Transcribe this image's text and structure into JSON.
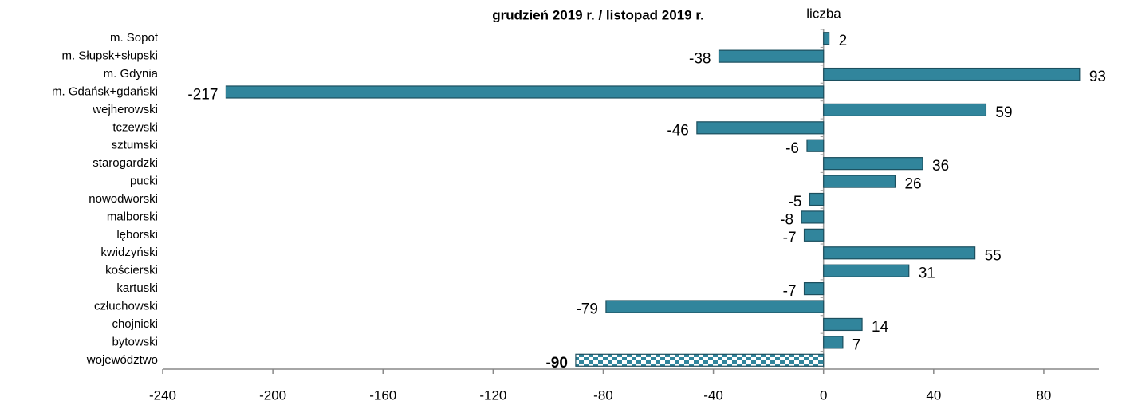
{
  "chart_data": {
    "type": "hbar",
    "title": "grudzień 2019 r. / listopad 2019 r.",
    "axis_label": "liczba",
    "categories": [
      "m. Sopot",
      "m. Słupsk+słupski",
      "m. Gdynia",
      "m. Gdańsk+gdański",
      "wejherowski",
      "tczewski",
      "sztumski",
      "starogardzki",
      "pucki",
      "nowodworski",
      "malborski",
      "lęborski",
      "kwidzyński",
      "kościerski",
      "kartuski",
      "człuchowski",
      "chojnicki",
      "bytowski",
      "województwo"
    ],
    "values": [
      2,
      -38,
      93,
      -217,
      59,
      -46,
      -6,
      36,
      26,
      -5,
      -8,
      -7,
      55,
      31,
      -7,
      -79,
      14,
      7,
      -90
    ],
    "color": "#31859c",
    "highlight": "województwo",
    "xlim": [
      -240,
      100
    ],
    "xticks": [
      -240,
      -200,
      -160,
      -120,
      -80,
      -40,
      0,
      40,
      80
    ]
  }
}
